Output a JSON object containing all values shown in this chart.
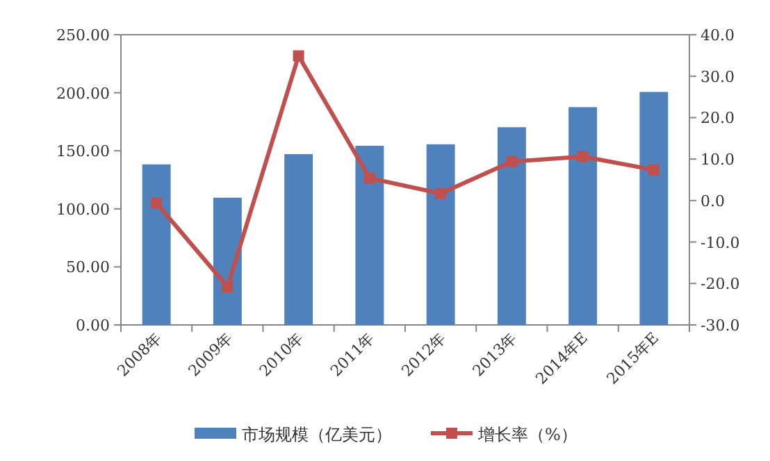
{
  "chart_data": {
    "type": "bar",
    "categories": [
      "2008年",
      "2009年",
      "2010年",
      "2011年",
      "2012年",
      "2013年",
      "2014年E",
      "2015年E"
    ],
    "series": [
      {
        "name": "市场规模（亿美元）",
        "color": "#4f81bd",
        "values": [
          138.3,
          109.6,
          147.1,
          154.3,
          155.6,
          170.3,
          187.6,
          200.7
        ]
      },
      {
        "name": "增长率（%）",
        "type": "line",
        "axis": "y2",
        "color": "#c0504d",
        "marker": "square",
        "values": [
          -0.6,
          -20.8,
          34.9,
          5.4,
          1.7,
          9.4,
          10.6,
          7.4
        ]
      }
    ],
    "ylim": [
      0,
      250
    ],
    "yticks": [
      {
        "value": 0,
        "label": "0.00"
      },
      {
        "value": 50,
        "label": "50.00"
      },
      {
        "value": 100,
        "label": "100.00"
      },
      {
        "value": 150,
        "label": "150.00"
      },
      {
        "value": 200,
        "label": "200.00"
      },
      {
        "value": 250,
        "label": "250.00"
      }
    ],
    "y2lim": [
      -30,
      40
    ],
    "y2ticks": [
      {
        "value": -30,
        "label": "-30.0"
      },
      {
        "value": -20,
        "label": "-20.0"
      },
      {
        "value": -10,
        "label": "-10.0"
      },
      {
        "value": 0,
        "label": "0.0"
      },
      {
        "value": 10,
        "label": "10.0"
      },
      {
        "value": 20,
        "label": "20.0"
      },
      {
        "value": 30,
        "label": "30.0"
      },
      {
        "value": 40,
        "label": "40.0"
      }
    ],
    "grid": false,
    "legend": "bottom"
  }
}
